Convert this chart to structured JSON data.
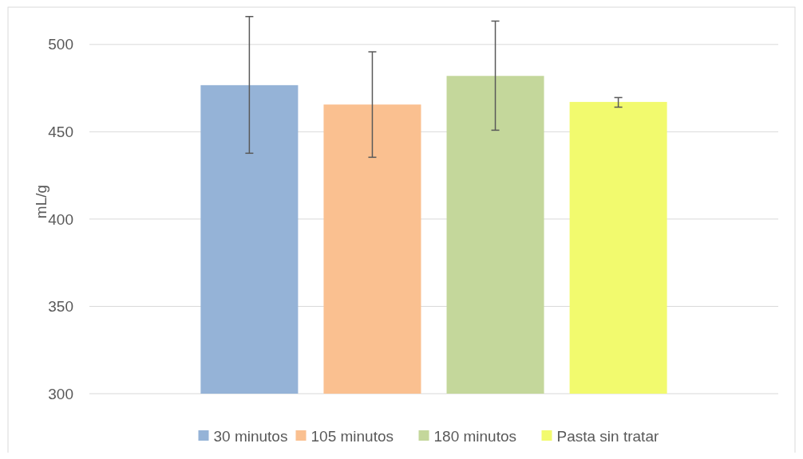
{
  "chart_data": {
    "type": "bar",
    "ylabel": "mL/g",
    "categories": [
      null
    ],
    "ylim": [
      300,
      520
    ],
    "yticks": [
      300,
      350,
      400,
      450,
      500
    ],
    "grid": "y",
    "legend": "bottom",
    "series": [
      {
        "name": "30 minutos",
        "color": "#95b3d7",
        "values": [
          476.7
        ],
        "errors": [
          [
            437.7,
            516
          ]
        ]
      },
      {
        "name": "105 minutos",
        "color": "#fac090",
        "values": [
          465.6
        ],
        "errors": [
          [
            435.4,
            495.8
          ]
        ]
      },
      {
        "name": "180 minutos",
        "color": "#c4d79b",
        "values": [
          482
        ],
        "errors": [
          [
            450.9,
            513.4
          ]
        ]
      },
      {
        "name": "Pasta sin tratar",
        "color": "#f2fa6e",
        "values": [
          467.1
        ],
        "errors": [
          [
            464.1,
            469.6
          ]
        ]
      }
    ]
  }
}
